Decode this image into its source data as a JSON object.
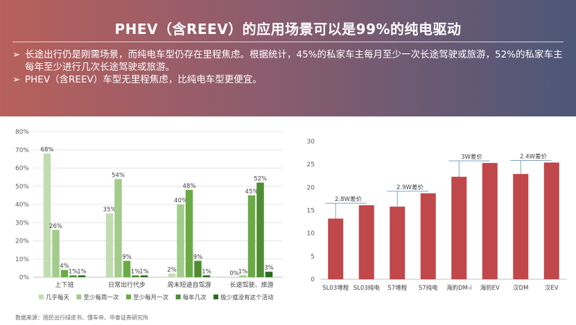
{
  "header": {
    "title": "PHEV（含REEV）的应用场景可以是99%的纯电驱动",
    "bullets": [
      {
        "mark": "➢",
        "text": "长途出行仍是刚需场景，而纯电车型仍存在里程焦虑。根据统计，45%的私家车主每月至少一次长途驾驶或旅游，52%的私家车主每年至少进行几次长途驾驶或旅游。"
      },
      {
        "mark": "➢",
        "text": "PHEV（含REEV）车型无里程焦虑，比纯电车型更便宜。"
      }
    ]
  },
  "source": "数据来源：国民出行绿皮书、懂车帝、中泰证券研究所",
  "chart_data": [
    {
      "type": "bar",
      "categories": [
        "上下班",
        "日常出行代步",
        "周末短途自驾游",
        "长途驾驶、旅游"
      ],
      "series": [
        {
          "name": "几乎每天",
          "color": "#c2dcb2",
          "values": [
            68,
            35,
            2,
            0
          ],
          "labels": [
            "68%",
            "35%",
            "2%",
            "0%"
          ]
        },
        {
          "name": "至少每周一次",
          "color": "#a3cb8c",
          "values": [
            26,
            54,
            40,
            1
          ],
          "labels": [
            "26%",
            "54%",
            "40%",
            "1%"
          ]
        },
        {
          "name": "至少每月一次",
          "color": "#6aab46",
          "values": [
            4,
            9,
            48,
            45
          ],
          "labels": [
            "4%",
            "9%",
            "48%",
            "45%"
          ]
        },
        {
          "name": "每年几次",
          "color": "#4f8c33",
          "values": [
            1,
            1,
            9,
            52
          ],
          "labels": [
            "1%",
            "1%",
            "9%",
            "52%"
          ]
        },
        {
          "name": "极少或没有这个活动",
          "color": "#2e6a22",
          "values": [
            1,
            1,
            1,
            3
          ],
          "labels": [
            "1%",
            "1%",
            "1%",
            "3%"
          ]
        }
      ],
      "yticks": [
        "0%",
        "10%",
        "20%",
        "30%",
        "40%",
        "50%",
        "60%",
        "70%",
        "80%"
      ],
      "ylim": [
        0,
        80
      ],
      "grid": true,
      "legend": "bottom"
    },
    {
      "type": "bar",
      "categories": [
        "SL03增程",
        "SL03纯电",
        "S7增程",
        "S7纯电",
        "海豹DM-i",
        "海豹EV",
        "汉DM",
        "汉EV"
      ],
      "values": [
        13.2,
        16.1,
        15.8,
        18.7,
        22.3,
        25.3,
        22.9,
        25.4
      ],
      "color": "#c0474a",
      "yticks": [
        "0",
        "5",
        "10",
        "15",
        "20",
        "25",
        "30"
      ],
      "ylim": [
        0,
        30
      ],
      "grid": false,
      "annotations": [
        {
          "text": "2.8W差价",
          "from": 0,
          "to": 1
        },
        {
          "text": "2.9W差价",
          "from": 2,
          "to": 3
        },
        {
          "text": "3W差价",
          "from": 4,
          "to": 5
        },
        {
          "text": "2.4W差价",
          "from": 6,
          "to": 7
        }
      ]
    }
  ]
}
